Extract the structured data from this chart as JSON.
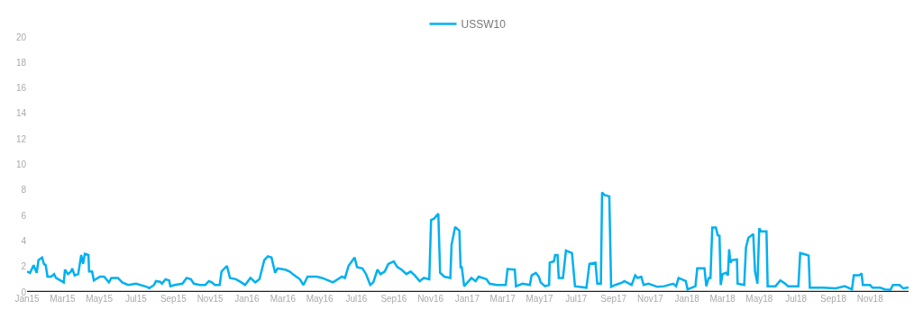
{
  "chart_data": {
    "type": "line",
    "legend": "top",
    "marker": "none",
    "line_style": "solid",
    "grid": false,
    "ylim": [
      0,
      20
    ],
    "yticks": [
      0,
      2,
      4,
      6,
      8,
      10,
      12,
      14,
      16,
      18,
      20
    ],
    "xlim": [
      "2015-01-01",
      "2019-01-04"
    ],
    "xticks": [
      {
        "value": "2015-01-01",
        "label": "Jan15"
      },
      {
        "value": "2015-03-01",
        "label": "Mar15"
      },
      {
        "value": "2015-05-01",
        "label": "May15"
      },
      {
        "value": "2015-07-01",
        "label": "Jul15"
      },
      {
        "value": "2015-09-01",
        "label": "Sep15"
      },
      {
        "value": "2015-11-01",
        "label": "Nov15"
      },
      {
        "value": "2016-01-01",
        "label": "Jan16"
      },
      {
        "value": "2016-03-01",
        "label": "Mar16"
      },
      {
        "value": "2016-05-01",
        "label": "May16"
      },
      {
        "value": "2016-07-01",
        "label": "Jul16"
      },
      {
        "value": "2016-09-01",
        "label": "Sep16"
      },
      {
        "value": "2016-11-01",
        "label": "Nov16"
      },
      {
        "value": "2017-01-01",
        "label": "Jan17"
      },
      {
        "value": "2017-03-01",
        "label": "Mar17"
      },
      {
        "value": "2017-05-01",
        "label": "May17"
      },
      {
        "value": "2017-07-01",
        "label": "Jul17"
      },
      {
        "value": "2017-09-01",
        "label": "Sep17"
      },
      {
        "value": "2017-11-01",
        "label": "Nov17"
      },
      {
        "value": "2018-01-01",
        "label": "Jan18"
      },
      {
        "value": "2018-03-01",
        "label": "Mar18"
      },
      {
        "value": "2018-05-01",
        "label": "May18"
      },
      {
        "value": "2018-07-01",
        "label": "Jul18"
      },
      {
        "value": "2018-09-01",
        "label": "Sep18"
      },
      {
        "value": "2018-11-01",
        "label": "Nov18"
      }
    ],
    "series": [
      {
        "name": "USSW10",
        "color": "#00b0f0",
        "x": [
          "2015-01-01",
          "2015-01-06",
          "2015-01-12",
          "2015-01-17",
          "2015-01-20",
          "2015-01-26",
          "2015-01-29",
          "2015-02-01",
          "2015-02-04",
          "2015-02-10",
          "2015-02-15",
          "2015-02-18",
          "2015-03-03",
          "2015-03-05",
          "2015-03-10",
          "2015-03-15",
          "2015-03-17",
          "2015-03-21",
          "2015-03-27",
          "2015-04-01",
          "2015-04-04",
          "2015-04-07",
          "2015-04-13",
          "2015-04-14",
          "2015-04-19",
          "2015-04-22",
          "2015-05-02",
          "2015-05-09",
          "2015-05-17",
          "2015-05-21",
          "2015-06-01",
          "2015-06-08",
          "2015-06-18",
          "2015-07-01",
          "2015-07-19",
          "2015-07-23",
          "2015-07-31",
          "2015-08-03",
          "2015-08-10",
          "2015-08-13",
          "2015-08-19",
          "2015-08-25",
          "2015-08-27",
          "2015-09-03",
          "2015-09-16",
          "2015-09-23",
          "2015-09-30",
          "2015-10-05",
          "2015-10-15",
          "2015-10-24",
          "2015-10-30",
          "2015-11-04",
          "2015-11-09",
          "2015-11-17",
          "2015-11-20",
          "2015-11-29",
          "2015-12-04",
          "2015-12-14",
          "2015-12-23",
          "2015-12-29",
          "2016-01-07",
          "2016-01-15",
          "2016-01-22",
          "2016-01-30",
          "2016-02-05",
          "2016-02-11",
          "2016-02-17",
          "2016-02-21",
          "2016-03-05",
          "2016-03-12",
          "2016-03-20",
          "2016-03-29",
          "2016-04-04",
          "2016-04-11",
          "2016-04-26",
          "2016-05-05",
          "2016-05-23",
          "2016-06-07",
          "2016-06-12",
          "2016-06-18",
          "2016-06-28",
          "2016-07-02",
          "2016-07-11",
          "2016-07-17",
          "2016-07-24",
          "2016-07-29",
          "2016-08-05",
          "2016-08-10",
          "2016-08-17",
          "2016-08-23",
          "2016-09-01",
          "2016-09-07",
          "2016-09-14",
          "2016-09-22",
          "2016-09-29",
          "2016-10-06",
          "2016-10-14",
          "2016-10-21",
          "2016-10-30",
          "2016-11-02",
          "2016-11-07",
          "2016-11-14",
          "2016-11-17",
          "2016-11-24",
          "2016-12-04",
          "2016-12-06",
          "2016-12-12",
          "2016-12-19",
          "2016-12-21",
          "2016-12-23",
          "2016-12-27",
          "2017-01-08",
          "2017-01-15",
          "2017-01-20",
          "2017-02-02",
          "2017-02-07",
          "2017-02-19",
          "2017-03-06",
          "2017-03-09",
          "2017-03-21",
          "2017-03-23",
          "2017-04-03",
          "2017-04-15",
          "2017-04-18",
          "2017-04-25",
          "2017-04-30",
          "2017-05-03",
          "2017-05-10",
          "2017-05-17",
          "2017-05-18",
          "2017-05-25",
          "2017-05-27",
          "2017-05-31",
          "2017-06-02",
          "2017-06-09",
          "2017-06-14",
          "2017-06-24",
          "2017-06-29",
          "2017-07-18",
          "2017-07-23",
          "2017-08-02",
          "2017-08-05",
          "2017-08-11",
          "2017-08-13",
          "2017-08-17",
          "2017-08-25",
          "2017-08-28",
          "2017-09-04",
          "2017-09-16",
          "2017-09-19",
          "2017-10-01",
          "2017-10-07",
          "2017-10-11",
          "2017-10-17",
          "2017-10-21",
          "2017-10-29",
          "2017-11-13",
          "2017-11-24",
          "2017-12-09",
          "2017-12-14",
          "2017-12-18",
          "2017-12-30",
          "2018-01-02",
          "2018-01-15",
          "2018-01-18",
          "2018-01-30",
          "2018-02-02",
          "2018-02-06",
          "2018-02-09",
          "2018-02-12",
          "2018-02-18",
          "2018-02-21",
          "2018-02-24",
          "2018-02-26",
          "2018-03-01",
          "2018-03-07",
          "2018-03-10",
          "2018-03-12",
          "2018-03-14",
          "2018-03-17",
          "2018-03-25",
          "2018-03-26",
          "2018-04-06",
          "2018-04-09",
          "2018-04-13",
          "2018-04-21",
          "2018-04-24",
          "2018-04-28",
          "2018-05-01",
          "2018-05-04",
          "2018-05-13",
          "2018-05-15",
          "2018-05-28",
          "2018-06-05",
          "2018-06-13",
          "2018-06-18",
          "2018-07-05",
          "2018-07-08",
          "2018-07-16",
          "2018-07-22",
          "2018-07-24",
          "2018-08-15",
          "2018-09-05",
          "2018-09-20",
          "2018-10-02",
          "2018-10-05",
          "2018-10-14",
          "2018-10-18",
          "2018-10-20",
          "2018-11-01",
          "2018-11-05",
          "2018-11-18",
          "2018-11-26",
          "2018-12-05",
          "2018-12-09",
          "2018-12-20",
          "2018-12-26",
          "2019-01-04"
        ],
        "values": [
          1.6,
          1.5,
          2.1,
          1.5,
          2.5,
          2.7,
          2.2,
          2.1,
          1.2,
          1.2,
          1.4,
          1.1,
          0.75,
          1.75,
          1.4,
          1.6,
          1.85,
          1.3,
          1.4,
          2.9,
          2.2,
          3.0,
          2.9,
          1.6,
          1.6,
          0.9,
          1.2,
          1.2,
          0.75,
          1.1,
          1.1,
          0.75,
          0.55,
          0.65,
          0.4,
          0.3,
          0.55,
          0.85,
          0.8,
          0.65,
          1.0,
          0.9,
          0.45,
          0.55,
          0.65,
          1.1,
          1.0,
          0.65,
          0.55,
          0.55,
          0.85,
          0.75,
          0.55,
          0.55,
          1.6,
          2.05,
          1.1,
          1.0,
          0.75,
          0.55,
          1.1,
          0.75,
          1.0,
          2.5,
          2.8,
          2.7,
          1.5,
          1.85,
          1.75,
          1.6,
          1.3,
          1.0,
          0.55,
          1.2,
          1.2,
          1.1,
          0.75,
          1.2,
          1.1,
          2.05,
          2.7,
          1.95,
          1.85,
          1.4,
          0.55,
          0.75,
          1.75,
          1.4,
          1.6,
          2.2,
          2.4,
          1.95,
          1.75,
          1.4,
          1.6,
          1.3,
          0.85,
          1.1,
          1.0,
          5.65,
          5.75,
          6.15,
          1.5,
          1.2,
          1.1,
          3.7,
          5.1,
          4.8,
          1.95,
          1.95,
          0.45,
          1.1,
          0.85,
          1.2,
          1.0,
          0.65,
          0.55,
          0.55,
          1.8,
          1.75,
          0.45,
          0.65,
          0.55,
          1.3,
          1.5,
          1.2,
          0.75,
          0.45,
          0.55,
          2.3,
          2.4,
          2.9,
          2.9,
          1.1,
          1.1,
          3.25,
          3.05,
          0.45,
          0.33,
          2.2,
          2.3,
          0.65,
          0.65,
          7.8,
          7.6,
          7.5,
          0.4,
          0.55,
          0.75,
          0.85,
          0.55,
          1.3,
          1.1,
          1.2,
          0.55,
          0.65,
          0.4,
          0.45,
          0.65,
          0.45,
          1.1,
          0.85,
          0.2,
          0.45,
          1.85,
          1.85,
          0.45,
          1.1,
          1.1,
          5.05,
          5.05,
          4.45,
          4.4,
          0.55,
          1.4,
          1.5,
          1.3,
          3.35,
          2.3,
          2.5,
          2.55,
          0.65,
          0.55,
          3.5,
          4.25,
          4.55,
          1.6,
          0.65,
          5.0,
          4.75,
          4.75,
          0.45,
          0.45,
          0.9,
          0.65,
          0.45,
          0.45,
          3.05,
          2.95,
          2.85,
          0.33,
          0.33,
          0.28,
          0.45,
          0.2,
          1.3,
          1.3,
          1.45,
          0.55,
          0.55,
          0.33,
          0.33,
          0.2,
          0.17,
          0.55,
          0.55,
          0.28,
          0.35
        ]
      }
    ]
  }
}
